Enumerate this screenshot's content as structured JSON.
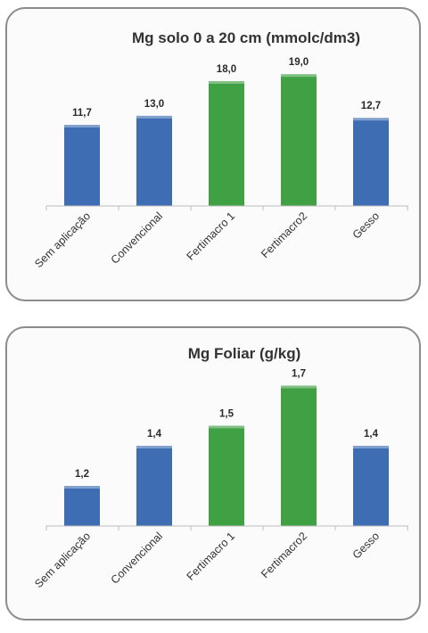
{
  "chart_data": [
    {
      "type": "bar",
      "title": "Mg solo 0 a 20 cm (mmolc/dm3)",
      "categories": [
        "Sem aplicação",
        "Convencional",
        "Fertimacro 1",
        "Fertimacro2",
        "Gesso"
      ],
      "values": [
        11.7,
        13.0,
        18.0,
        19.0,
        12.7
      ],
      "value_labels": [
        "11,7",
        "13,0",
        "18,0",
        "19,0",
        "12,7"
      ],
      "bar_colors": [
        "#3f6db3",
        "#3f6db3",
        "#3fa044",
        "#3fa044",
        "#3f6db3"
      ],
      "ylim": [
        0,
        20.7
      ],
      "xlabel": "",
      "ylabel": "",
      "grid": false,
      "legend": "none"
    },
    {
      "type": "bar",
      "title": "Mg Foliar (g/kg)",
      "categories": [
        "Sem aplicação",
        "Convencional",
        "Fertimacro 1",
        "Fertimacro2",
        "Gesso"
      ],
      "values": [
        1.2,
        1.4,
        1.5,
        1.7,
        1.4
      ],
      "value_labels": [
        "1,2",
        "1,4",
        "1,5",
        "1,7",
        "1,4"
      ],
      "bar_colors": [
        "#3f6db3",
        "#3f6db3",
        "#3fa044",
        "#3fa044",
        "#3f6db3"
      ],
      "ylim": [
        1.0,
        1.72
      ],
      "xlabel": "",
      "ylabel": "",
      "grid": false,
      "legend": "none"
    }
  ]
}
